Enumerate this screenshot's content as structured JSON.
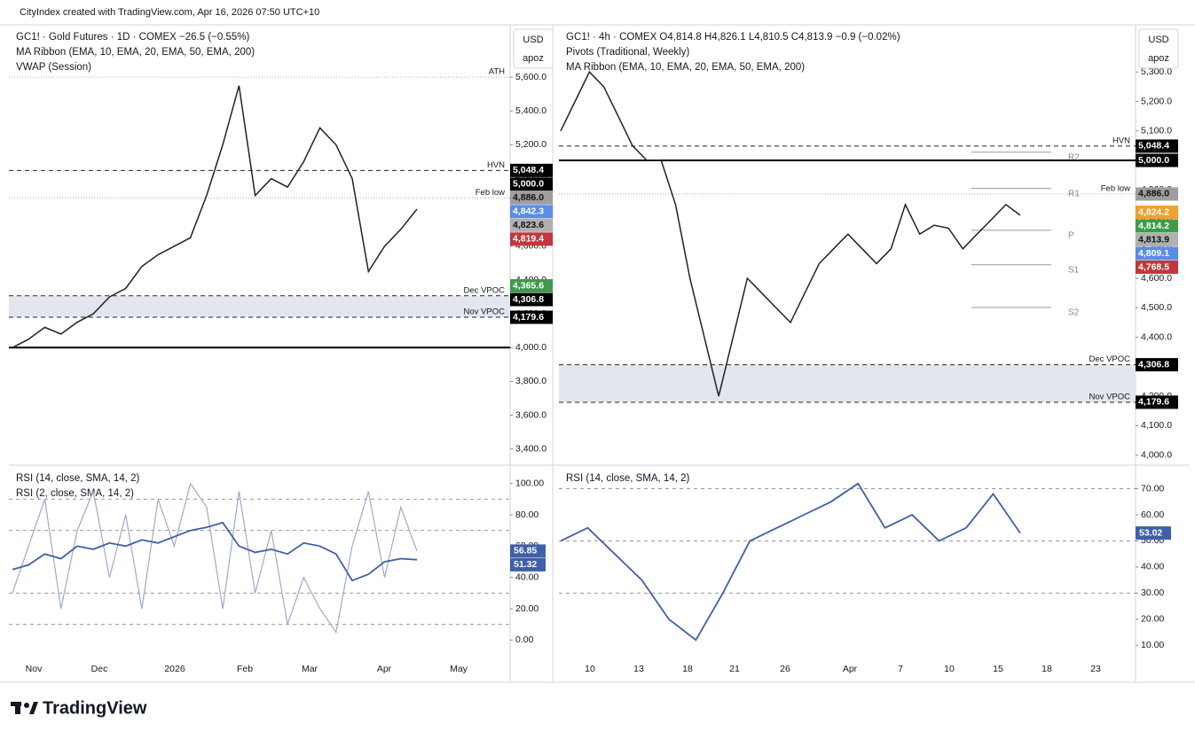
{
  "header": "CityIndex created with TradingView.com, Apr 16, 2026 07:50 UTC+10",
  "logo": "TradingView",
  "panels": [
    {
      "currency": "USD",
      "unit": "apoz",
      "legend": [
        "GC1! · Gold Futures · 1D · COMEX  −26.5 (−0.55%)",
        "MA Ribbon (EMA, 10, EMA, 20, EMA, 50, EMA, 200)",
        "VWAP (Session)"
      ],
      "ylim": [
        3320,
        5910
      ],
      "yticks": [
        {
          "value": 3400,
          "label": "3,400.0"
        },
        {
          "value": 3600,
          "label": "3,600.0"
        },
        {
          "value": 3800,
          "label": "3,800.0"
        },
        {
          "value": 4000,
          "label": "4,000.0"
        },
        {
          "value": 4200,
          "label": "4,200.0"
        },
        {
          "value": 4400,
          "label": "4,400.0"
        },
        {
          "value": 4600,
          "label": "4,600.0"
        },
        {
          "value": 4800,
          "label": "4,800.0"
        },
        {
          "value": 5000,
          "label": "5,000.0"
        },
        {
          "value": 5200,
          "label": "5,200.0"
        },
        {
          "value": 5400,
          "label": "5,400.0"
        },
        {
          "value": 5600,
          "label": "5,600.0"
        }
      ],
      "solid_level": 4000,
      "levels": [
        {
          "label": "ATH",
          "value": 5600
        },
        {
          "label": "HVN",
          "value": 5048.4
        },
        {
          "label": "Feb low",
          "value": 4886.0
        },
        {
          "label": "Dec VPOC",
          "value": 4306.8
        },
        {
          "label": "Nov VPOC",
          "value": 4179.6
        }
      ],
      "zone": [
        4179.6,
        4306.8
      ],
      "badges": [
        {
          "value": 5048.4,
          "label": "5,048.4",
          "color": "#000000"
        },
        {
          "value": 5000,
          "label": "5,000.0",
          "color": "#000000"
        },
        {
          "value": 4886.0,
          "label": "4,886.0",
          "color": "#9e9e9e"
        },
        {
          "value": 4842.3,
          "label": "4,842.3",
          "color": "#5b8ce6"
        },
        {
          "value": 4823.6,
          "label": "4,823.6",
          "color": "#b0b0b0"
        },
        {
          "value": 4819.4,
          "label": "4,819.4",
          "color": "#c2373d"
        },
        {
          "value": 4365.6,
          "label": "4,365.6",
          "color": "#3f9a4c"
        },
        {
          "value": 4306.8,
          "label": "4,306.8",
          "color": "#000000"
        },
        {
          "value": 4179.6,
          "label": "4,179.6",
          "color": "#000000"
        }
      ],
      "close": {
        "name": "Close",
        "color": "#222222",
        "values": [
          4000,
          4050,
          4120,
          4080,
          4150,
          4200,
          4300,
          4350,
          4480,
          4550,
          4600,
          4650,
          4900,
          5200,
          5550,
          4900,
          5000,
          4950,
          5100,
          5300,
          5200,
          5000,
          4450,
          4600,
          4700,
          4819.4
        ]
      },
      "rsi_legend": [
        "RSI (14, close, SMA, 14, 2)",
        "RSI (2, close, SMA, 14, 2)"
      ],
      "rsi_ylim": [
        -10,
        110
      ],
      "rsi_yticks": [
        {
          "value": 0,
          "label": "0.00"
        },
        {
          "value": 20,
          "label": "20.00"
        },
        {
          "value": 40,
          "label": "40.00"
        },
        {
          "value": 60,
          "label": "60.00"
        },
        {
          "value": 80,
          "label": "80.00"
        },
        {
          "value": 100,
          "label": "100.00"
        }
      ],
      "rsi_bands": [
        10,
        30,
        70,
        90
      ],
      "rsi_series": [
        {
          "color": "#3f5fa8",
          "values": [
            45,
            48,
            55,
            52,
            60,
            58,
            62,
            60,
            64,
            62,
            66,
            70,
            72,
            75,
            60,
            56,
            58,
            55,
            62,
            60,
            55,
            38,
            42,
            50,
            52,
            51.32
          ]
        },
        {
          "color": "#9daacb",
          "values": [
            30,
            60,
            90,
            20,
            70,
            95,
            40,
            80,
            20,
            90,
            60,
            100,
            85,
            20,
            95,
            30,
            70,
            10,
            40,
            20,
            5,
            60,
            95,
            40,
            85,
            56.85
          ]
        }
      ],
      "rsi_badges": [
        {
          "value": 56.85,
          "label": "56.85",
          "color": "#3f5fa8"
        },
        {
          "value": 51.32,
          "label": "51.32",
          "color": "#3f5fa8"
        }
      ],
      "time_labels": [
        "Nov",
        "Dec",
        "2026",
        "Feb",
        "Mar",
        "Apr",
        "May"
      ]
    },
    {
      "currency": "USD",
      "unit": "apoz",
      "legend": [
        "GC1! · 4h · COMEX  O4,814.8  H4,826.1  L4,810.5  C4,813.9  −0.9 (−0.02%)",
        "Pivots (Traditional, Weekly)",
        "MA Ribbon (EMA, 10, EMA, 20, EMA, 50, EMA, 200)"
      ],
      "ylim": [
        3975,
        5460
      ],
      "yticks": [
        {
          "value": 4000,
          "label": "4,000.0"
        },
        {
          "value": 4100,
          "label": "4,100.0"
        },
        {
          "value": 4200,
          "label": "4,200.0"
        },
        {
          "value": 4300,
          "label": "4,300.0"
        },
        {
          "value": 4400,
          "label": "4,400.0"
        },
        {
          "value": 4500,
          "label": "4,500.0"
        },
        {
          "value": 4600,
          "label": "4,600.0"
        },
        {
          "value": 4700,
          "label": "4,700.0"
        },
        {
          "value": 4800,
          "label": "4,800.0"
        },
        {
          "value": 4900,
          "label": "4,900.0"
        },
        {
          "value": 5000,
          "label": "5,000.0"
        },
        {
          "value": 5100,
          "label": "5,100.0"
        },
        {
          "value": 5200,
          "label": "5,200.0"
        },
        {
          "value": 5300,
          "label": "5,300.0"
        }
      ],
      "solid_level": 5000,
      "levels": [
        {
          "label": "HVN",
          "value": 5048.4
        },
        {
          "label": "Feb low",
          "value": 4886.0
        },
        {
          "label": "Dec VPOC",
          "value": 4306.8
        },
        {
          "label": "Nov VPOC",
          "value": 4179.6
        }
      ],
      "zone": [
        4179.6,
        4306.8
      ],
      "pivots": [
        {
          "label": "R2",
          "value": 5028
        },
        {
          "label": "R1",
          "value": 4905
        },
        {
          "label": "P",
          "value": 4763
        },
        {
          "label": "S1",
          "value": 4646
        },
        {
          "label": "S2",
          "value": 4501
        }
      ],
      "badges": [
        {
          "value": 5048.4,
          "label": "5,048.4",
          "color": "#000000"
        },
        {
          "value": 5000,
          "label": "5,000.0",
          "color": "#000000"
        },
        {
          "value": 4886.0,
          "label": "4,886.0",
          "color": "#9e9e9e"
        },
        {
          "value": 4824.2,
          "label": "4,824.2",
          "color": "#f0a030"
        },
        {
          "value": 4814.2,
          "label": "4,814.2",
          "color": "#3f9a4c"
        },
        {
          "value": 4813.9,
          "label": "4,813.9",
          "color": "#b0b0b0"
        },
        {
          "value": 4809.1,
          "label": "4,809.1",
          "color": "#5b8ce6"
        },
        {
          "value": 4768.5,
          "label": "4,768.5",
          "color": "#c2373d"
        },
        {
          "value": 4306.8,
          "label": "4,306.8",
          "color": "#000000"
        },
        {
          "value": 4179.6,
          "label": "4,179.6",
          "color": "#000000"
        }
      ],
      "close": {
        "name": "Close",
        "color": "#222222",
        "values": [
          5100,
          5200,
          5300,
          5250,
          5150,
          5050,
          5000,
          5000,
          4850,
          4600,
          4400,
          4200,
          4400,
          4600,
          4550,
          4500,
          4450,
          4550,
          4650,
          4700,
          4750,
          4700,
          4650,
          4700,
          4850,
          4750,
          4780,
          4770,
          4700,
          4750,
          4800,
          4850,
          4813.9
        ]
      },
      "rsi_legend": [
        "RSI (14, close, SMA, 14, 2)"
      ],
      "rsi_ylim": [
        6,
        78
      ],
      "rsi_yticks": [
        {
          "value": 10,
          "label": "10.00"
        },
        {
          "value": 20,
          "label": "20.00"
        },
        {
          "value": 30,
          "label": "30.00"
        },
        {
          "value": 40,
          "label": "40.00"
        },
        {
          "value": 50,
          "label": "50.00"
        },
        {
          "value": 60,
          "label": "60.00"
        },
        {
          "value": 70,
          "label": "70.00"
        }
      ],
      "rsi_bands": [
        30,
        50,
        70
      ],
      "rsi_series": [
        {
          "color": "#3f5fa8",
          "values": [
            50,
            55,
            45,
            35,
            20,
            12,
            30,
            50,
            55,
            60,
            65,
            72,
            55,
            60,
            50,
            55,
            68,
            53.02
          ]
        }
      ],
      "rsi_badges": [
        {
          "value": 53.02,
          "label": "53.02",
          "color": "#3f5fa8"
        }
      ],
      "time_labels": [
        "10",
        "13",
        "18",
        "21",
        "26",
        "Apr",
        "7",
        "10",
        "15",
        "18",
        "23"
      ]
    }
  ]
}
